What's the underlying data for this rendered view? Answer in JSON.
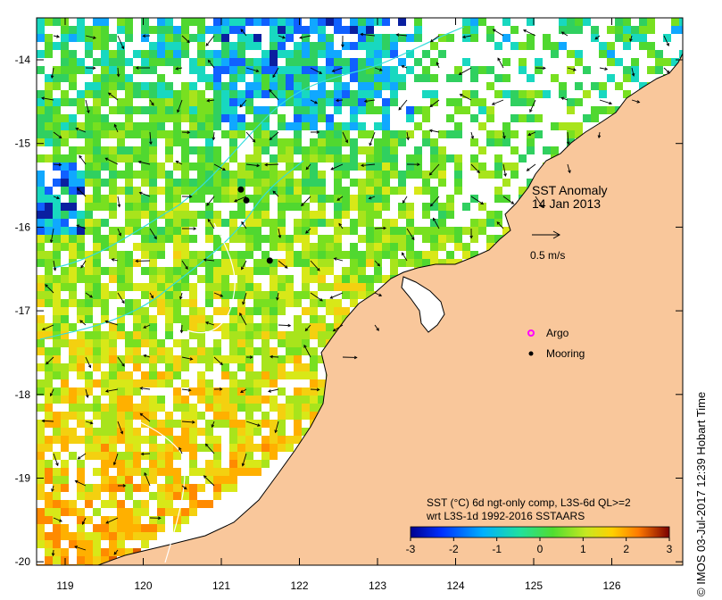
{
  "map": {
    "title_line1": "SST Anomaly",
    "title_line2": "14 Jan 2013",
    "arrow_scale_label": "0.5 m/s",
    "legend": {
      "argo": "Argo",
      "mooring": "Mooring"
    },
    "colorbar": {
      "caption_line1": "SST (°C) 6d ngt-only comp, L3S-6d QL>=2",
      "caption_line2": "wrt L3S-1d 1992-2016 SSTAARS",
      "min": -3,
      "max": 3,
      "ticks": [
        "-3",
        "-2",
        "-1",
        "0",
        "1",
        "2",
        "3"
      ]
    },
    "lon_ticks": [
      "119",
      "120",
      "121",
      "122",
      "123",
      "124",
      "125",
      "126"
    ],
    "lat_ticks": [
      "-14",
      "-15",
      "-16",
      "-17",
      "-18",
      "-19",
      "-20"
    ],
    "credit": "© IMOS 03-Jul-2017 12:39 Hobart Time",
    "moorings": [
      {
        "lon": 121.25,
        "lat": -15.55
      },
      {
        "lon": 121.32,
        "lat": -15.68
      },
      {
        "lon": 121.62,
        "lat": -16.4
      }
    ],
    "colors": {
      "land": "#f9c79b",
      "ocean_missing": "#ffffff",
      "argo": "#ff00ff",
      "contour": "#33dddd"
    }
  }
}
